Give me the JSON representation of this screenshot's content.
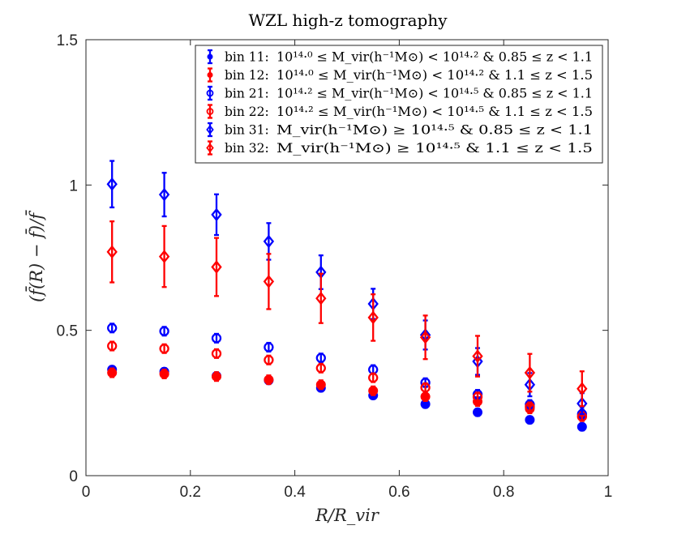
{
  "chart_data": {
    "type": "scatter",
    "title": "WZL high-z tomography",
    "xlabel": "R/R_vir",
    "ylabel": "(f̄(R) − f̄)/f̄",
    "xlim": [
      0,
      1
    ],
    "ylim": [
      0,
      1.5
    ],
    "xticks": [
      0,
      0.2,
      0.4,
      0.6,
      0.8,
      1
    ],
    "xtick_labels": [
      "0",
      "0.2",
      "0.4",
      "0.6",
      "0.8",
      "1"
    ],
    "yticks": [
      0,
      0.5,
      1,
      1.5
    ],
    "ytick_labels": [
      "0",
      "0.5",
      "1",
      "1.5"
    ],
    "legend_position": "top-right",
    "x": [
      0.05,
      0.15,
      0.25,
      0.35,
      0.45,
      0.55,
      0.65,
      0.75,
      0.85,
      0.95
    ],
    "series": [
      {
        "name": "bin 11: 10^14.0 ≤ M_vir(h⁻¹M⊙) < 10^14.2 & 0.85 ≤ z < 1.1",
        "color": "#0000ff",
        "marker": "filled-circle",
        "values": [
          0.365,
          0.358,
          0.343,
          0.328,
          0.302,
          0.276,
          0.246,
          0.218,
          0.192,
          0.168
        ],
        "errors": [
          0.012,
          0.012,
          0.012,
          0.012,
          0.012,
          0.012,
          0.012,
          0.012,
          0.012,
          0.012
        ]
      },
      {
        "name": "bin 12: 10^14.0 ≤ M_vir(h⁻¹M⊙) < 10^14.2 & 1.1 ≤ z < 1.5",
        "color": "#ff0000",
        "marker": "filled-circle",
        "values": [
          0.354,
          0.35,
          0.341,
          0.33,
          0.313,
          0.292,
          0.272,
          0.255,
          0.23,
          0.205
        ],
        "errors": [
          0.015,
          0.015,
          0.015,
          0.015,
          0.015,
          0.015,
          0.015,
          0.015,
          0.015,
          0.015
        ]
      },
      {
        "name": "bin 21: 10^14.2 ≤ M_vir(h⁻¹M⊙) < 10^14.5 & 0.85 ≤ z < 1.1",
        "color": "#0000ff",
        "marker": "open-circle",
        "values": [
          0.508,
          0.497,
          0.473,
          0.442,
          0.405,
          0.365,
          0.32,
          0.28,
          0.245,
          0.212
        ],
        "errors": [
          0.015,
          0.015,
          0.015,
          0.015,
          0.015,
          0.015,
          0.015,
          0.015,
          0.015,
          0.015
        ]
      },
      {
        "name": "bin 22: 10^14.2 ≤ M_vir(h⁻¹M⊙) < 10^14.5 & 1.1 ≤ z < 1.5",
        "color": "#ff0000",
        "marker": "open-circle",
        "values": [
          0.446,
          0.437,
          0.42,
          0.398,
          0.37,
          0.337,
          0.303,
          0.271,
          0.237,
          0.203
        ],
        "errors": [
          0.015,
          0.015,
          0.015,
          0.015,
          0.015,
          0.015,
          0.015,
          0.015,
          0.015,
          0.015
        ]
      },
      {
        "name": "bin 31: M_vir(h⁻¹M⊙) ≥ 10^14.5 & 0.85 ≤ z < 1.1",
        "color": "#0000ff",
        "marker": "open-diamond",
        "values": [
          1.003,
          0.967,
          0.898,
          0.806,
          0.7,
          0.591,
          0.484,
          0.393,
          0.313,
          0.248
        ],
        "errors": [
          0.08,
          0.075,
          0.07,
          0.063,
          0.058,
          0.052,
          0.05,
          0.046,
          0.04,
          0.036
        ]
      },
      {
        "name": "bin 32: M_vir(h⁻¹M⊙) ≥ 10^14.5 & 1.1 ≤ z < 1.5",
        "color": "#ff0000",
        "marker": "open-diamond",
        "values": [
          0.77,
          0.754,
          0.718,
          0.668,
          0.61,
          0.544,
          0.476,
          0.411,
          0.354,
          0.299
        ],
        "errors": [
          0.105,
          0.105,
          0.1,
          0.095,
          0.085,
          0.08,
          0.075,
          0.07,
          0.065,
          0.06
        ]
      }
    ]
  },
  "legend_items": [
    {
      "bin": "bin 11:",
      "expr": "10¹⁴·⁰ ≤ M_vir(h⁻¹M⊙) < 10¹⁴·² & 0.85 ≤ z < 1.1"
    },
    {
      "bin": "bin 12:",
      "expr": "10¹⁴·⁰ ≤ M_vir(h⁻¹M⊙) < 10¹⁴·² & 1.1 ≤ z < 1.5"
    },
    {
      "bin": "bin 21:",
      "expr": "10¹⁴·² ≤ M_vir(h⁻¹M⊙) < 10¹⁴·⁵ & 0.85 ≤ z < 1.1"
    },
    {
      "bin": "bin 22:",
      "expr": "10¹⁴·² ≤ M_vir(h⁻¹M⊙) < 10¹⁴·⁵ & 1.1 ≤ z < 1.5"
    },
    {
      "bin": "bin 31:",
      "expr": "M_vir(h⁻¹M⊙) ≥ 10¹⁴·⁵ & 0.85 ≤ z < 1.1"
    },
    {
      "bin": "bin 32:",
      "expr": "M_vir(h⁻¹M⊙) ≥ 10¹⁴·⁵ & 1.1 ≤ z < 1.5"
    }
  ]
}
